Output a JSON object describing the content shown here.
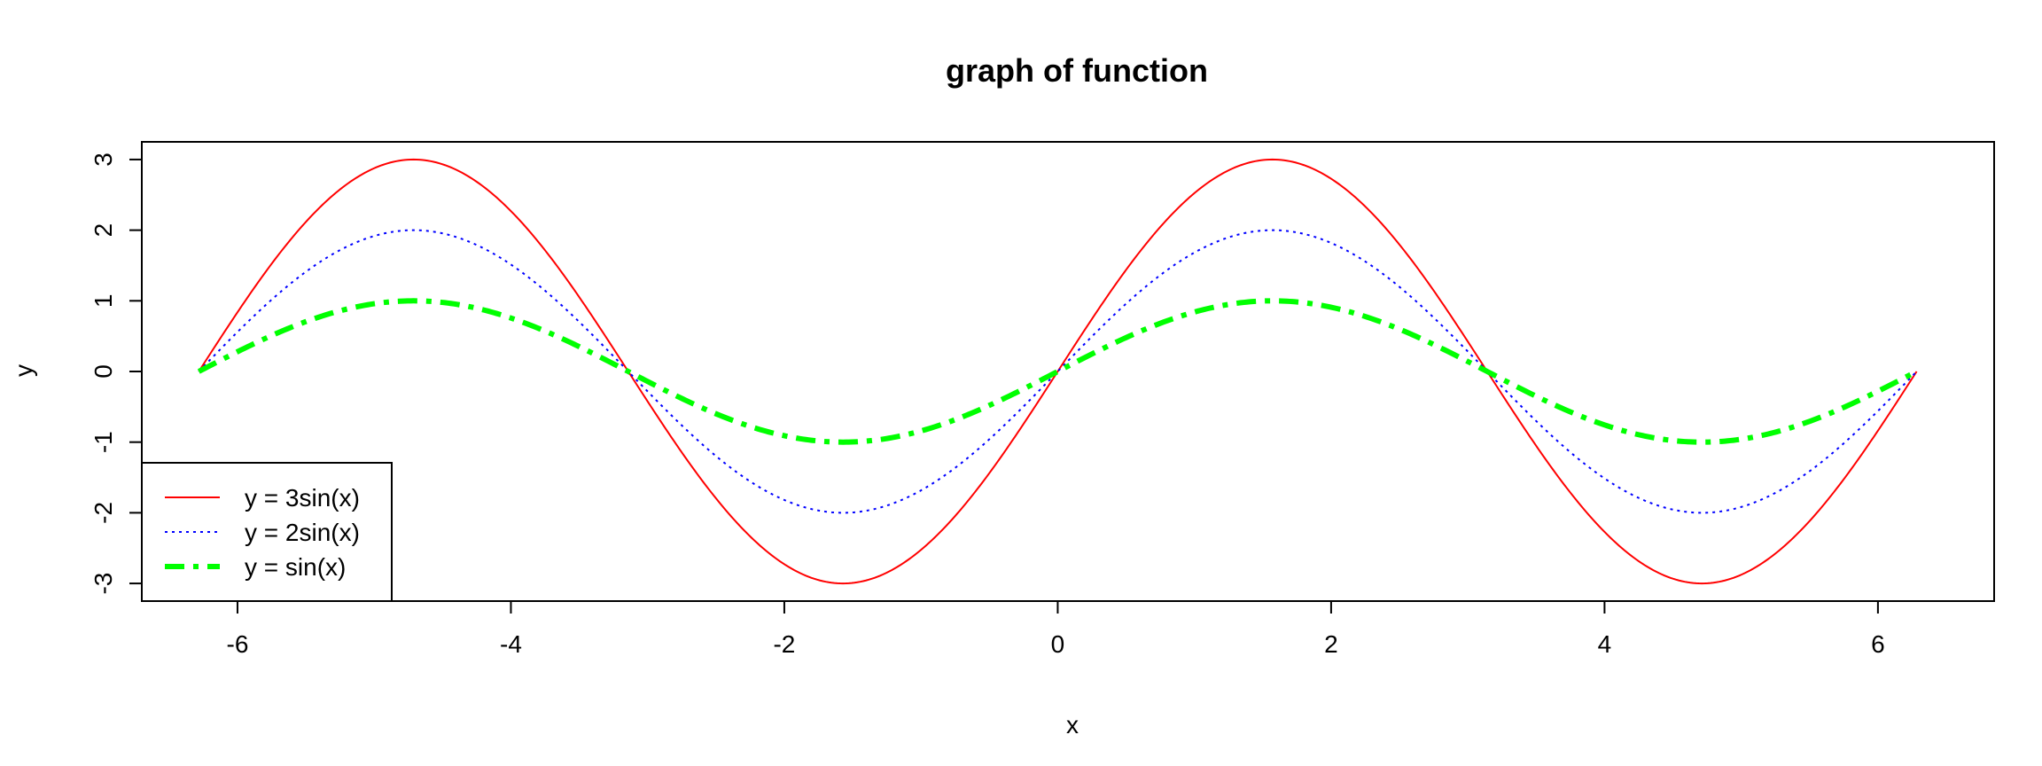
{
  "chart_data": {
    "type": "line",
    "title": "graph of function",
    "xlabel": "x",
    "ylabel": "y",
    "xlim": [
      -6.7,
      6.85
    ],
    "ylim": [
      -3.25,
      3.25
    ],
    "x_ticks": [
      -6,
      -4,
      -2,
      0,
      2,
      4,
      6
    ],
    "y_ticks": [
      -3,
      -2,
      -1,
      0,
      1,
      2,
      3
    ],
    "x_domain": [
      -6.283185307179586,
      6.283185307179586
    ],
    "grid": false,
    "legend_position": "bottom-left",
    "series": [
      {
        "name": "y = 3sin(x)",
        "amplitude": 3,
        "function": "3sin(x)",
        "color": "#ff0000",
        "line_style": "solid"
      },
      {
        "name": "y = 2sin(x)",
        "amplitude": 2,
        "function": "2sin(x)",
        "color": "#0000ff",
        "line_style": "dotted"
      },
      {
        "name": "y = sin(x)",
        "amplitude": 1,
        "function": "sin(x)",
        "color": "#00ff00",
        "line_style": "dash-dot"
      }
    ]
  }
}
